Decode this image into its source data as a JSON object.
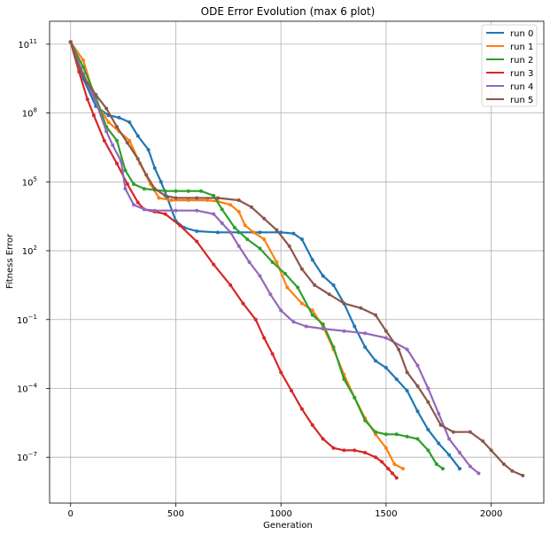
{
  "chart_data": {
    "type": "scatter",
    "title": "ODE Error Evolution (max 6 plot)",
    "xlabel": "Generation",
    "ylabel": "Fitness Error",
    "xlim": [
      -100,
      2250
    ],
    "ylog": true,
    "ylim_exp": [
      -9,
      12
    ],
    "grid": true,
    "legend_position": "top-right",
    "x_ticks": [
      0,
      500,
      1000,
      1500,
      2000
    ],
    "y_ticks": [
      {
        "base": "10",
        "exp": "11",
        "value_exp": 11
      },
      {
        "base": "10",
        "exp": "8",
        "value_exp": 8
      },
      {
        "base": "10",
        "exp": "5",
        "value_exp": 5
      },
      {
        "base": "10",
        "exp": "2",
        "value_exp": 2
      },
      {
        "base": "10",
        "exp": "−1",
        "value_exp": -1
      },
      {
        "base": "10",
        "exp": "−4",
        "value_exp": -4
      },
      {
        "base": "10",
        "exp": "−7",
        "value_exp": -7
      }
    ],
    "series": [
      {
        "name": "run 0",
        "color": "#1f77b4",
        "x": [
          0,
          60,
          120,
          180,
          230,
          280,
          320,
          370,
          400,
          430,
          460,
          500,
          540,
          600,
          700,
          800,
          900,
          1000,
          1060,
          1100,
          1150,
          1200,
          1250,
          1300,
          1350,
          1400,
          1450,
          1500,
          1550,
          1600,
          1650,
          1700,
          1750,
          1800,
          1850
        ],
        "y_exp": [
          11.1,
          9.5,
          8.3,
          7.9,
          7.8,
          7.6,
          7.0,
          6.4,
          5.6,
          5.0,
          4.3,
          3.3,
          3.0,
          2.85,
          2.8,
          2.8,
          2.8,
          2.8,
          2.75,
          2.5,
          1.6,
          0.9,
          0.5,
          -0.3,
          -1.3,
          -2.2,
          -2.8,
          -3.1,
          -3.6,
          -4.1,
          -5.0,
          -5.8,
          -6.4,
          -6.9,
          -7.5
        ]
      },
      {
        "name": "run 1",
        "color": "#ff7f0e",
        "x": [
          0,
          60,
          120,
          180,
          230,
          280,
          330,
          380,
          420,
          480,
          560,
          650,
          700,
          760,
          800,
          830,
          870,
          920,
          980,
          1030,
          1100,
          1150,
          1200,
          1250,
          1300,
          1350,
          1400,
          1450,
          1500,
          1540,
          1580
        ],
        "y_exp": [
          11.1,
          10.3,
          8.5,
          7.6,
          7.2,
          6.8,
          5.8,
          4.9,
          4.3,
          4.2,
          4.2,
          4.2,
          4.15,
          4.0,
          3.7,
          3.1,
          2.8,
          2.5,
          1.5,
          0.4,
          -0.3,
          -0.6,
          -1.3,
          -2.3,
          -3.4,
          -4.4,
          -5.3,
          -6.0,
          -6.6,
          -7.3,
          -7.5
        ]
      },
      {
        "name": "run 2",
        "color": "#2ca02c",
        "x": [
          0,
          60,
          120,
          170,
          220,
          260,
          300,
          350,
          400,
          450,
          500,
          560,
          620,
          680,
          720,
          780,
          840,
          900,
          960,
          1020,
          1080,
          1150,
          1200,
          1250,
          1300,
          1350,
          1400,
          1450,
          1500,
          1550,
          1600,
          1650,
          1700,
          1740,
          1770
        ],
        "y_exp": [
          11.1,
          10.0,
          8.7,
          7.4,
          6.8,
          5.5,
          4.9,
          4.7,
          4.65,
          4.6,
          4.6,
          4.6,
          4.6,
          4.4,
          3.8,
          3.0,
          2.5,
          2.1,
          1.5,
          1.0,
          0.4,
          -0.8,
          -1.2,
          -2.2,
          -3.6,
          -4.4,
          -5.4,
          -5.9,
          -6.0,
          -6.0,
          -6.1,
          -6.2,
          -6.7,
          -7.3,
          -7.5
        ]
      },
      {
        "name": "run 3",
        "color": "#d62728",
        "x": [
          0,
          40,
          80,
          110,
          160,
          220,
          270,
          320,
          350,
          400,
          450,
          520,
          600,
          680,
          760,
          820,
          880,
          920,
          960,
          1000,
          1050,
          1100,
          1150,
          1200,
          1250,
          1300,
          1350,
          1400,
          1450,
          1480,
          1510,
          1530,
          1550
        ],
        "y_exp": [
          11.1,
          9.8,
          8.6,
          7.9,
          6.8,
          5.8,
          4.9,
          4.1,
          3.8,
          3.7,
          3.6,
          3.1,
          2.4,
          1.4,
          0.5,
          -0.3,
          -1.0,
          -1.8,
          -2.5,
          -3.3,
          -4.1,
          -4.9,
          -5.6,
          -6.2,
          -6.6,
          -6.7,
          -6.7,
          -6.8,
          -7.0,
          -7.2,
          -7.5,
          -7.7,
          -7.9
        ]
      },
      {
        "name": "run 4",
        "color": "#9467bd",
        "x": [
          0,
          60,
          120,
          170,
          200,
          240,
          260,
          300,
          350,
          400,
          500,
          600,
          680,
          720,
          760,
          800,
          850,
          900,
          950,
          1000,
          1060,
          1120,
          1200,
          1300,
          1400,
          1500,
          1600,
          1650,
          1700,
          1750,
          1800,
          1850,
          1900,
          1940
        ],
        "y_exp": [
          11.1,
          9.7,
          8.5,
          7.2,
          6.6,
          5.9,
          4.7,
          4.0,
          3.8,
          3.75,
          3.75,
          3.75,
          3.6,
          3.2,
          2.8,
          2.2,
          1.5,
          0.9,
          0.1,
          -0.6,
          -1.1,
          -1.3,
          -1.4,
          -1.5,
          -1.6,
          -1.8,
          -2.3,
          -3.0,
          -4.0,
          -5.1,
          -6.2,
          -6.8,
          -7.4,
          -7.7
        ]
      },
      {
        "name": "run 5",
        "color": "#8c564b",
        "x": [
          0,
          40,
          80,
          120,
          170,
          220,
          270,
          320,
          360,
          400,
          450,
          500,
          600,
          700,
          800,
          860,
          920,
          980,
          1040,
          1100,
          1160,
          1230,
          1300,
          1380,
          1450,
          1500,
          1560,
          1600,
          1650,
          1700,
          1760,
          1820,
          1900,
          1960,
          2000,
          2060,
          2100,
          2150
        ],
        "y_exp": [
          11.1,
          10.0,
          9.3,
          8.8,
          8.2,
          7.4,
          6.7,
          6.0,
          5.3,
          4.7,
          4.4,
          4.3,
          4.3,
          4.3,
          4.2,
          3.9,
          3.4,
          2.9,
          2.2,
          1.2,
          0.5,
          0.1,
          -0.3,
          -0.5,
          -0.8,
          -1.5,
          -2.3,
          -3.3,
          -3.9,
          -4.6,
          -5.6,
          -5.9,
          -5.9,
          -6.3,
          -6.7,
          -7.3,
          -7.6,
          -7.8
        ]
      }
    ]
  }
}
